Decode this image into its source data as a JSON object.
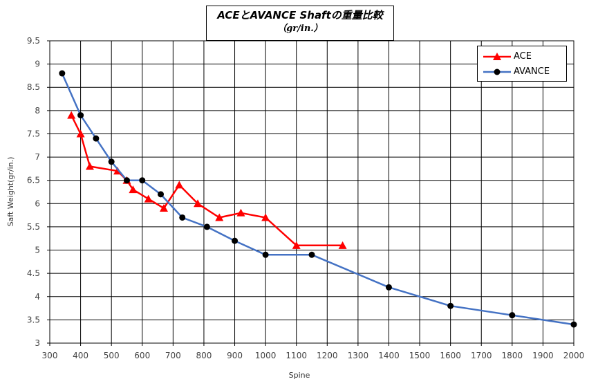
{
  "chart_data": {
    "type": "line",
    "title": "ACEとAVANCE Shaftの重量比較",
    "subtitle": "（gr/in.）",
    "xlabel": "Spine",
    "ylabel": "Saft Weight(gr/in.)",
    "xlim": [
      300,
      2000
    ],
    "ylim": [
      3,
      9.5
    ],
    "xticks": [
      300,
      400,
      500,
      600,
      700,
      800,
      900,
      1000,
      1100,
      1200,
      1300,
      1400,
      1500,
      1600,
      1700,
      1800,
      1900,
      2000
    ],
    "yticks": [
      3,
      3.5,
      4,
      4.5,
      5,
      5.5,
      6,
      6.5,
      7,
      7.5,
      8,
      8.5,
      9,
      9.5
    ],
    "grid": true,
    "legend_position": "top-right",
    "series": [
      {
        "name": "ACE",
        "color": "#ff0000",
        "marker": "triangle",
        "x": [
          370,
          400,
          430,
          520,
          550,
          570,
          620,
          670,
          720,
          780,
          850,
          920,
          1000,
          1100,
          1250
        ],
        "y": [
          7.9,
          7.5,
          6.8,
          6.7,
          6.5,
          6.3,
          6.1,
          5.9,
          6.4,
          6.0,
          5.7,
          5.8,
          5.7,
          5.1,
          5.1
        ]
      },
      {
        "name": "AVANCE",
        "color": "#4472c4",
        "marker": "circle",
        "x": [
          340,
          400,
          450,
          500,
          550,
          600,
          660,
          730,
          810,
          900,
          1000,
          1150,
          1400,
          1600,
          1800,
          2000
        ],
        "y": [
          8.8,
          7.9,
          7.4,
          6.9,
          6.5,
          6.5,
          6.2,
          5.7,
          5.5,
          5.2,
          4.9,
          4.9,
          4.2,
          3.8,
          3.6,
          3.4
        ]
      }
    ]
  }
}
